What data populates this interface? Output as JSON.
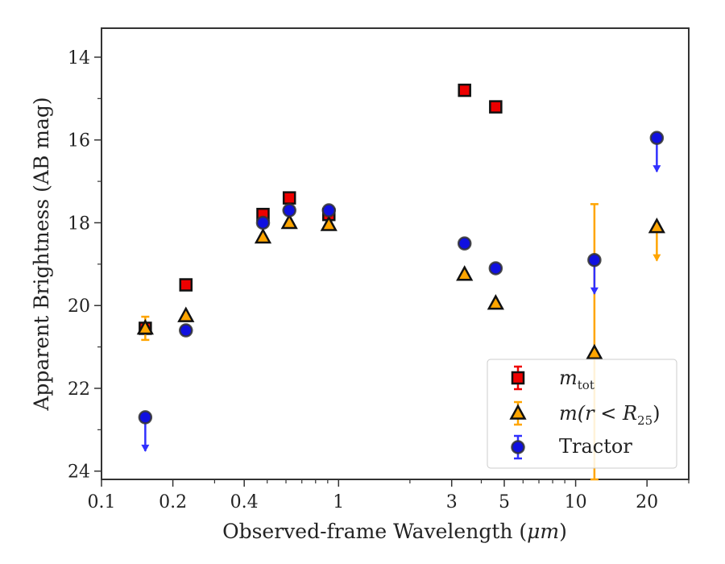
{
  "chart_data": {
    "type": "scatter",
    "xlabel_prefix": "Observed-frame Wavelength (",
    "xlabel_unit": "μm",
    "xlabel_suffix": ")",
    "ylabel": "Apparent Brightness (AB mag)",
    "x_scale": "log",
    "xlim": [
      0.1,
      30
    ],
    "ylim": [
      24.2,
      13.3
    ],
    "y_inverted": true,
    "grid": false,
    "legend_position": "lower-right",
    "x_ticks": [
      {
        "value": 0.1,
        "label": "0.1"
      },
      {
        "value": 0.2,
        "label": "0.2"
      },
      {
        "value": 0.4,
        "label": "0.4"
      },
      {
        "value": 1,
        "label": "1"
      },
      {
        "value": 3,
        "label": "3"
      },
      {
        "value": 5,
        "label": "5"
      },
      {
        "value": 10,
        "label": "10"
      },
      {
        "value": 20,
        "label": "20"
      }
    ],
    "y_ticks": [
      {
        "value": 14,
        "label": "14"
      },
      {
        "value": 16,
        "label": "16"
      },
      {
        "value": 18,
        "label": "18"
      },
      {
        "value": 20,
        "label": "20"
      },
      {
        "value": 22,
        "label": "22"
      },
      {
        "value": 24,
        "label": "24"
      }
    ],
    "series": [
      {
        "key": "mtot",
        "legend_main": "m",
        "legend_sub": "tot",
        "marker": "square",
        "color": "#ee0000",
        "error_color": "#ee0000",
        "points": [
          {
            "x": 0.153,
            "y": 20.55
          },
          {
            "x": 0.227,
            "y": 19.5
          },
          {
            "x": 0.48,
            "y": 17.8
          },
          {
            "x": 0.62,
            "y": 17.4
          },
          {
            "x": 0.91,
            "y": 17.8
          },
          {
            "x": 3.4,
            "y": 14.8
          },
          {
            "x": 4.6,
            "y": 15.2
          }
        ]
      },
      {
        "key": "mr25",
        "legend_main": "m(r < R",
        "legend_sub": "25",
        "legend_end": ")",
        "marker": "triangle",
        "color": "#ffa500",
        "error_color": "#ffa500",
        "points": [
          {
            "x": 0.153,
            "y": 20.55,
            "err": 0.28
          },
          {
            "x": 0.227,
            "y": 20.25
          },
          {
            "x": 0.48,
            "y": 18.35
          },
          {
            "x": 0.62,
            "y": 18.0
          },
          {
            "x": 0.91,
            "y": 18.05
          },
          {
            "x": 3.4,
            "y": 19.25
          },
          {
            "x": 4.6,
            "y": 19.95
          },
          {
            "x": 12,
            "y": 21.15,
            "err_low": 17.55,
            "err_high": 24.2
          },
          {
            "x": 22,
            "y": 18.1,
            "upper_limit": true
          }
        ]
      },
      {
        "key": "tractor",
        "legend_main": "Tractor",
        "marker": "circle",
        "color": "#1010e0",
        "error_color": "#3030ff",
        "points": [
          {
            "x": 0.153,
            "y": 22.7,
            "upper_limit": true
          },
          {
            "x": 0.227,
            "y": 20.6
          },
          {
            "x": 0.48,
            "y": 18.0
          },
          {
            "x": 0.62,
            "y": 17.7
          },
          {
            "x": 0.91,
            "y": 17.7
          },
          {
            "x": 3.4,
            "y": 18.5
          },
          {
            "x": 4.6,
            "y": 19.1
          },
          {
            "x": 12,
            "y": 18.9,
            "upper_limit": true
          },
          {
            "x": 22,
            "y": 15.95,
            "upper_limit": true
          }
        ]
      }
    ]
  }
}
